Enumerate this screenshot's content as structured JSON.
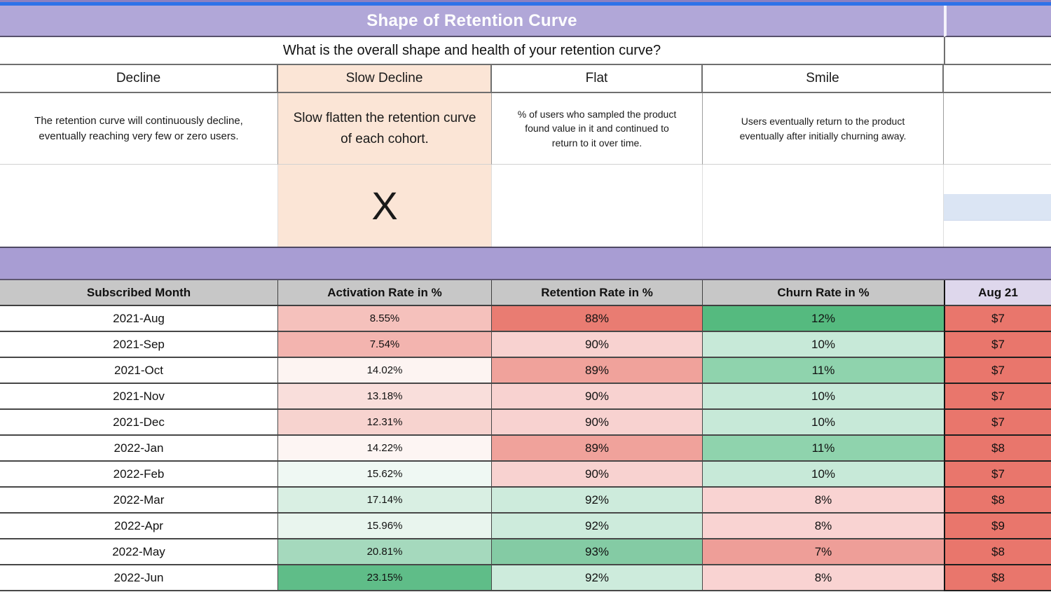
{
  "colors": {
    "top_bar_blue": "#2e72e8",
    "top_sliver_purple": "#8b80c0",
    "title_band_purple": "#b1a7d8",
    "divider_band_purple": "#a89dd3",
    "highlight_peach": "#fbe5d6",
    "table_header_gray": "#c7c7c7",
    "aug_header_purple": "#ded7ec",
    "selected_cell_blue": "#dbe5f4",
    "strong_red": "#e97c72",
    "strong_green": "#55ba7f"
  },
  "header": {
    "title": "Shape of Retention Curve",
    "question": "What is the overall shape and health of your retention curve?"
  },
  "shapes": [
    {
      "label": "Decline",
      "description": "The retention curve will continuously decline, eventually reaching very few or zero users.",
      "marker": ""
    },
    {
      "label": "Slow Decline",
      "description": "Slow flatten the retention curve of each cohort.",
      "marker": "X"
    },
    {
      "label": "Flat",
      "description": "% of users who sampled the product found value in it and continued to return to it over time.",
      "marker": ""
    },
    {
      "label": "Smile",
      "description": "Users eventually return to the product eventually after initially churning away.",
      "marker": ""
    }
  ],
  "table": {
    "headers": [
      "Subscribed Month",
      "Activation Rate in %",
      "Retention Rate in %",
      "Churn Rate in %",
      "Aug 21"
    ],
    "rows": [
      {
        "month": "2021-Aug",
        "activation": "8.55%",
        "activation_bg": "#f5c1bc",
        "retention": "88%",
        "retention_bg": "#e97c72",
        "churn": "12%",
        "churn_bg": "#55ba7f",
        "price": "$7",
        "price_bg": "#e9766c"
      },
      {
        "month": "2021-Sep",
        "activation": "7.54%",
        "activation_bg": "#f3b4af",
        "retention": "90%",
        "retention_bg": "#f8d2d0",
        "churn": "10%",
        "churn_bg": "#c7e9d8",
        "price": "$7",
        "price_bg": "#e9766c"
      },
      {
        "month": "2021-Oct",
        "activation": "14.02%",
        "activation_bg": "#fdf4f2",
        "retention": "89%",
        "retention_bg": "#f0a29b",
        "churn": "11%",
        "churn_bg": "#8fd3ad",
        "price": "$7",
        "price_bg": "#e9766c"
      },
      {
        "month": "2021-Nov",
        "activation": "13.18%",
        "activation_bg": "#f9dedb",
        "retention": "90%",
        "retention_bg": "#f8d2d0",
        "churn": "10%",
        "churn_bg": "#c7e9d8",
        "price": "$7",
        "price_bg": "#e9766c"
      },
      {
        "month": "2021-Dec",
        "activation": "12.31%",
        "activation_bg": "#f7d3cf",
        "retention": "90%",
        "retention_bg": "#f8d2d0",
        "churn": "10%",
        "churn_bg": "#c7e9d8",
        "price": "$7",
        "price_bg": "#e9766c"
      },
      {
        "month": "2022-Jan",
        "activation": "14.22%",
        "activation_bg": "#fdf5f3",
        "retention": "89%",
        "retention_bg": "#f0a29b",
        "churn": "11%",
        "churn_bg": "#8fd3ad",
        "price": "$8",
        "price_bg": "#e9766c"
      },
      {
        "month": "2022-Feb",
        "activation": "15.62%",
        "activation_bg": "#eff8f3",
        "retention": "90%",
        "retention_bg": "#f8d2d0",
        "churn": "10%",
        "churn_bg": "#c7e9d8",
        "price": "$7",
        "price_bg": "#e9766c"
      },
      {
        "month": "2022-Mar",
        "activation": "17.14%",
        "activation_bg": "#d9efe3",
        "retention": "92%",
        "retention_bg": "#cdebdc",
        "churn": "8%",
        "churn_bg": "#f9d3d2",
        "price": "$8",
        "price_bg": "#e9766c"
      },
      {
        "month": "2022-Apr",
        "activation": "15.96%",
        "activation_bg": "#e9f5ee",
        "retention": "92%",
        "retention_bg": "#cdebdc",
        "churn": "8%",
        "churn_bg": "#f9d3d2",
        "price": "$9",
        "price_bg": "#e9766c"
      },
      {
        "month": "2022-May",
        "activation": "20.81%",
        "activation_bg": "#a5d9bd",
        "retention": "93%",
        "retention_bg": "#84cba4",
        "churn": "7%",
        "churn_bg": "#ee9e98",
        "price": "$8",
        "price_bg": "#e9766c"
      },
      {
        "month": "2022-Jun",
        "activation": "23.15%",
        "activation_bg": "#5fbd88",
        "retention": "92%",
        "retention_bg": "#cdebdc",
        "churn": "8%",
        "churn_bg": "#f9d3d2",
        "price": "$8",
        "price_bg": "#e9766c"
      }
    ]
  }
}
